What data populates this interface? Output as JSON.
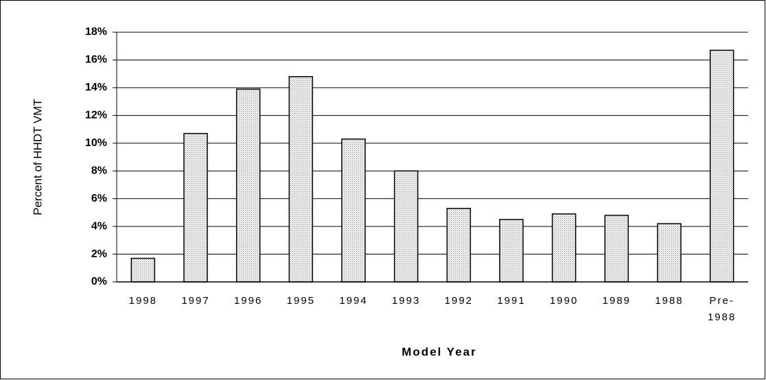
{
  "chart_data": {
    "type": "bar",
    "xlabel": "Model Year",
    "ylabel": "Percent of HHDT VMT",
    "categories": [
      "1998",
      "1997",
      "1996",
      "1995",
      "1994",
      "1993",
      "1992",
      "1991",
      "1990",
      "1989",
      "1988",
      "Pre-1988"
    ],
    "values": [
      1.7,
      10.7,
      13.9,
      14.8,
      10.3,
      8.0,
      5.3,
      4.5,
      4.9,
      4.8,
      4.2,
      16.7
    ],
    "color": "#e4e4e4",
    "ylim": [
      0,
      18
    ],
    "yticks": [
      {
        "value": 0,
        "label": "0%"
      },
      {
        "value": 2,
        "label": "2%"
      },
      {
        "value": 4,
        "label": "4%"
      },
      {
        "value": 6,
        "label": "6%"
      },
      {
        "value": 8,
        "label": "8%"
      },
      {
        "value": 10,
        "label": "10%"
      },
      {
        "value": 12,
        "label": "12%"
      },
      {
        "value": 14,
        "label": "14%"
      },
      {
        "value": 16,
        "label": "16%"
      },
      {
        "value": 18,
        "label": "18%"
      }
    ],
    "grid": true
  }
}
